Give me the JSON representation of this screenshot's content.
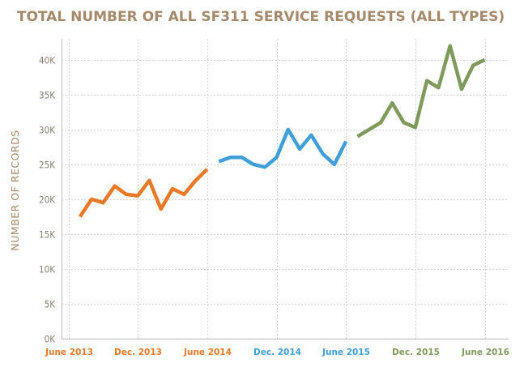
{
  "chart_data": {
    "type": "line",
    "title": "TOTAL NUMBER OF ALL SF311 SERVICE REQUESTS (ALL TYPES)",
    "xlabel": "",
    "ylabel": "NUMBER OF RECORDS",
    "ylim": [
      0,
      43000
    ],
    "y_ticks": [
      "0K",
      "5K",
      "10K",
      "15K",
      "20K",
      "25K",
      "30K",
      "35K",
      "40K"
    ],
    "y_tick_values": [
      0,
      5000,
      10000,
      15000,
      20000,
      25000,
      30000,
      35000,
      40000
    ],
    "x_ticks": [
      {
        "label": "June 2013",
        "x": "2013-06",
        "color": "#e87928"
      },
      {
        "label": "Dec. 2013",
        "x": "2013-12",
        "color": "#e87928"
      },
      {
        "label": "June 2014",
        "x": "2014-06",
        "color": "#e87928"
      },
      {
        "label": "Dec. 2014",
        "x": "2014-12",
        "color": "#3f9fd6"
      },
      {
        "label": "June 2015",
        "x": "2015-06",
        "color": "#3f9fd6"
      },
      {
        "label": "Dec. 2015",
        "x": "2015-12",
        "color": "#7f9a5c"
      },
      {
        "label": "June 2016",
        "x": "2016-06",
        "color": "#7f9a5c"
      }
    ],
    "grid": true,
    "legend": "none",
    "series": [
      {
        "color": "#e87928",
        "x": [
          "2013-07",
          "2013-08",
          "2013-09",
          "2013-10",
          "2013-11",
          "2013-12",
          "2014-01",
          "2014-02",
          "2014-03",
          "2014-04",
          "2014-05",
          "2014-06"
        ],
        "y": [
          17500,
          20000,
          19500,
          21900,
          20700,
          20500,
          22700,
          18600,
          21500,
          20700,
          22700,
          24300
        ]
      },
      {
        "color": "#3f9fd6",
        "x": [
          "2014-07",
          "2014-08",
          "2014-09",
          "2014-10",
          "2014-11",
          "2014-12",
          "2015-01",
          "2015-02",
          "2015-03",
          "2015-04",
          "2015-05",
          "2015-06"
        ],
        "y": [
          25400,
          26000,
          26000,
          25000,
          24600,
          26000,
          30000,
          27200,
          29200,
          26500,
          25000,
          28300
        ]
      },
      {
        "color": "#7f9a5c",
        "x": [
          "2015-07",
          "2015-09",
          "2015-10",
          "2015-11",
          "2015-12",
          "2016-01",
          "2016-02",
          "2016-03",
          "2016-04",
          "2016-05",
          "2016-06"
        ],
        "y": [
          29000,
          31000,
          33800,
          31000,
          30300,
          37000,
          36000,
          42000,
          35800,
          39200,
          40000
        ]
      }
    ]
  }
}
